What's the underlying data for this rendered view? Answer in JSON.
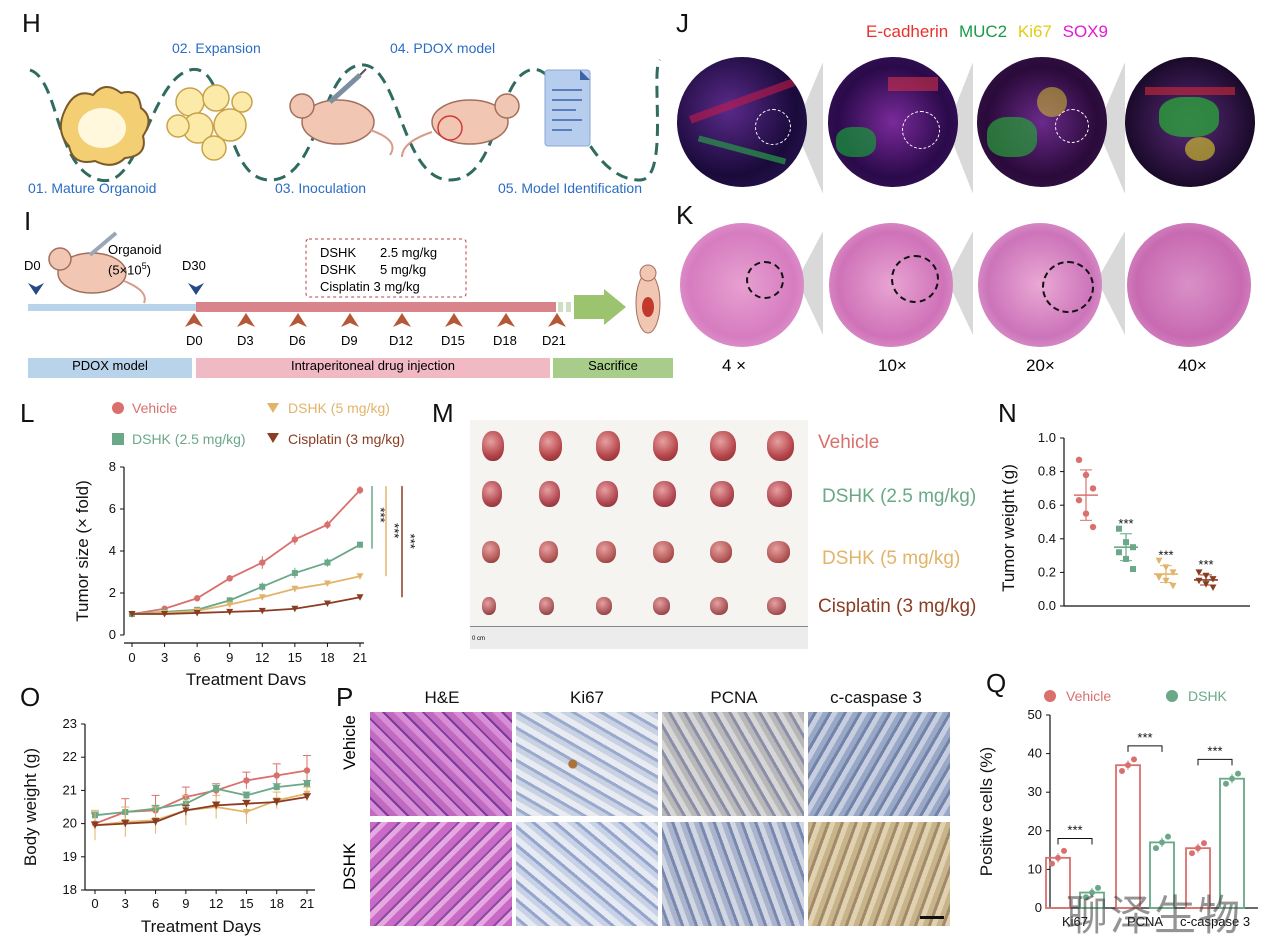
{
  "panels": {
    "H": "H",
    "I": "I",
    "J": "J",
    "K": "K",
    "L": "L",
    "M": "M",
    "N": "N",
    "O": "O",
    "P": "P",
    "Q": "Q"
  },
  "H": {
    "steps": [
      "01. Mature Organoid",
      "02. Expansion",
      "03. Inoculation",
      "04. PDOX model",
      "05. Model Identification"
    ]
  },
  "I": {
    "organoid_label": "Organoid",
    "organoid_dose": "(5×10",
    "organoid_exp": "5",
    "organoid_close": ")",
    "d0_left": "D0",
    "d30": "D30",
    "doses": [
      {
        "drug": "DSHK",
        "dose": "2.5 mg/kg"
      },
      {
        "drug": "DSHK",
        "dose": "5 mg/kg"
      },
      {
        "drug": "Cisplatin",
        "dose": "3 mg/kg"
      }
    ],
    "days": [
      "D0",
      "D3",
      "D6",
      "D9",
      "D12",
      "D15",
      "D18",
      "D21"
    ],
    "phases": [
      "PDOX model",
      "Intraperitoneal drug injection",
      "Sacrifice"
    ]
  },
  "J": {
    "stains": [
      "E-cadherin",
      "MUC2",
      "Ki67",
      "SOX9"
    ],
    "stain_colors": [
      "#e8322e",
      "#1a9a4a",
      "#e8d21a",
      "#e21ad8"
    ]
  },
  "K": {
    "magnifications": [
      "4 ×",
      "10×",
      "20×",
      "40×"
    ]
  },
  "colors": {
    "vehicle": "#d9706e",
    "dshk25": "#6aa888",
    "dshk5": "#e2b46a",
    "cisplatin": "#8a3d22"
  },
  "L": {
    "legend": [
      "Vehicle",
      "DSHK (5 mg/kg)",
      "DSHK (2.5 mg/kg)",
      "Cisplatin (3 mg/kg)"
    ],
    "sig": "***"
  },
  "M": {
    "groups": [
      "Vehicle",
      "DSHK (2.5 mg/kg)",
      "DSHK (5 mg/kg)",
      "Cisplatin (3 mg/kg)"
    ],
    "ruler_label": "0 cm"
  },
  "P": {
    "columns": [
      "H&E",
      "Ki67",
      "PCNA",
      "c-caspase 3"
    ],
    "rows": [
      "Vehicle",
      "DSHK"
    ]
  },
  "Q": {
    "legend": [
      "Vehicle",
      "DSHK"
    ]
  },
  "watermark": "聊泽生物",
  "chart_data": [
    {
      "panel": "L",
      "type": "line",
      "xlabel": "Treatment Days",
      "ylabel": "Tumor size (× fold)",
      "x": [
        0,
        3,
        6,
        9,
        12,
        15,
        18,
        21
      ],
      "xlim": [
        0,
        21
      ],
      "ylim": [
        0,
        8
      ],
      "yticks": [
        0,
        2,
        4,
        6,
        8
      ],
      "series": [
        {
          "name": "Vehicle",
          "values": [
            1.0,
            1.25,
            1.75,
            2.7,
            3.45,
            4.55,
            5.25,
            6.9
          ],
          "err": [
            0.05,
            0.1,
            0.1,
            0.15,
            0.3,
            0.25,
            0.2,
            0.2
          ]
        },
        {
          "name": "DSHK (2.5 mg/kg)",
          "values": [
            1.0,
            1.1,
            1.2,
            1.65,
            2.3,
            2.95,
            3.45,
            4.3
          ],
          "err": [
            0.05,
            0.05,
            0.1,
            0.15,
            0.2,
            0.25,
            0.2,
            0.15
          ]
        },
        {
          "name": "DSHK (5 mg/kg)",
          "values": [
            1.0,
            1.05,
            1.15,
            1.45,
            1.8,
            2.2,
            2.45,
            2.8
          ],
          "err": [
            0.05,
            0.05,
            0.1,
            0.1,
            0.1,
            0.15,
            0.1,
            0.1
          ]
        },
        {
          "name": "Cisplatin (3 mg/kg)",
          "values": [
            1.0,
            1.0,
            1.05,
            1.1,
            1.15,
            1.25,
            1.5,
            1.8
          ],
          "err": [
            0.05,
            0.05,
            0.05,
            0.05,
            0.05,
            0.05,
            0.1,
            0.05
          ]
        }
      ]
    },
    {
      "panel": "N",
      "type": "scatter",
      "ylabel": "Tumor weight (g)",
      "ylim": [
        0,
        1.0
      ],
      "yticks": [
        "0.0",
        "0.2",
        "0.4",
        "0.6",
        "0.8",
        "1.0"
      ],
      "groups": [
        {
          "name": "Vehicle",
          "points": [
            0.87,
            0.78,
            0.7,
            0.63,
            0.55,
            0.47
          ],
          "mean": 0.66,
          "sd": 0.15,
          "sig": ""
        },
        {
          "name": "DSHK (2.5 mg/kg)",
          "points": [
            0.46,
            0.38,
            0.35,
            0.32,
            0.28,
            0.22
          ],
          "mean": 0.35,
          "sd": 0.08,
          "sig": "***"
        },
        {
          "name": "DSHK (5 mg/kg)",
          "points": [
            0.27,
            0.23,
            0.2,
            0.17,
            0.15,
            0.12
          ],
          "mean": 0.19,
          "sd": 0.05,
          "sig": "***"
        },
        {
          "name": "Cisplatin (3 mg/kg)",
          "points": [
            0.2,
            0.18,
            0.16,
            0.15,
            0.13,
            0.11
          ],
          "mean": 0.155,
          "sd": 0.03,
          "sig": "***"
        }
      ]
    },
    {
      "panel": "O",
      "type": "line",
      "xlabel": "Treatment Days",
      "ylabel": "Body weight (g)",
      "x": [
        0,
        3,
        6,
        9,
        12,
        15,
        18,
        21
      ],
      "ylim": [
        18,
        23
      ],
      "yticks": [
        18,
        19,
        20,
        21,
        22,
        23
      ],
      "series": [
        {
          "name": "Vehicle",
          "values": [
            20.0,
            20.35,
            20.4,
            20.8,
            21.0,
            21.3,
            21.45,
            21.6
          ],
          "err": [
            0.3,
            0.4,
            0.45,
            0.3,
            0.2,
            0.25,
            0.35,
            0.45
          ]
        },
        {
          "name": "DSHK (2.5 mg/kg)",
          "values": [
            20.25,
            20.35,
            20.45,
            20.6,
            21.05,
            20.85,
            21.1,
            21.2
          ],
          "err": [
            0.1,
            0.15,
            0.1,
            0.15,
            0.1,
            0.1,
            0.1,
            0.1
          ]
        },
        {
          "name": "DSHK (5 mg/kg)",
          "values": [
            19.95,
            20.05,
            20.1,
            20.4,
            20.5,
            20.35,
            20.7,
            20.9
          ],
          "err": [
            0.45,
            0.45,
            0.4,
            0.45,
            0.35,
            0.35,
            0.25,
            0.2
          ]
        },
        {
          "name": "Cisplatin (3 mg/kg)",
          "values": [
            19.95,
            20.0,
            20.05,
            20.4,
            20.55,
            20.6,
            20.65,
            20.8
          ],
          "err": [
            0.1,
            0.1,
            0.1,
            0.15,
            0.1,
            0.1,
            0.1,
            0.1
          ]
        }
      ]
    },
    {
      "panel": "Q",
      "type": "bar",
      "ylabel": "Positive cells (%)",
      "categories": [
        "Ki67",
        "PCNA",
        "c-caspase 3"
      ],
      "ylim": [
        0,
        50
      ],
      "yticks": [
        0,
        10,
        20,
        30,
        40,
        50
      ],
      "sig": "***",
      "series": [
        {
          "name": "Vehicle",
          "values": [
            13,
            37,
            15.5
          ],
          "points": [
            [
              11.5,
              13,
              14.8
            ],
            [
              35.5,
              37,
              38.5
            ],
            [
              14.2,
              15.5,
              16.8
            ]
          ]
        },
        {
          "name": "DSHK",
          "values": [
            4,
            17,
            33.5
          ],
          "points": [
            [
              2.8,
              4,
              5.2
            ],
            [
              15.5,
              17,
              18.5
            ],
            [
              32.2,
              33.5,
              34.8
            ]
          ]
        }
      ]
    }
  ]
}
